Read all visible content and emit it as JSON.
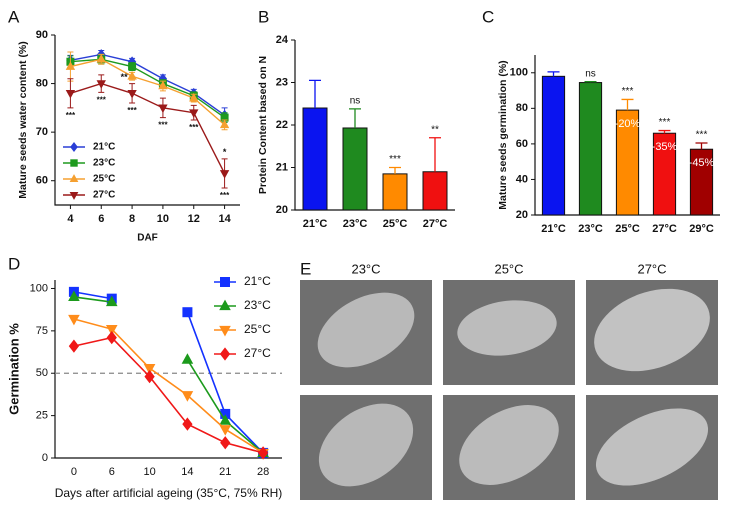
{
  "chart_data": [
    {
      "type": "line",
      "panel_label": "A",
      "ylabel": "Mature seeds water content (%)",
      "xlabel": "DAF",
      "x": [
        4,
        6,
        8,
        10,
        12,
        14
      ],
      "xlim": [
        3,
        15
      ],
      "xticks": [
        4,
        6,
        8,
        10,
        12,
        14
      ],
      "ylim": [
        55,
        90
      ],
      "yticks": [
        60,
        70,
        80,
        90
      ],
      "legend": "lower-left",
      "series": [
        {
          "name": "21°C",
          "color": "#2a3fd6",
          "marker": "diamond",
          "values": [
            84.8,
            86,
            84.5,
            81,
            78,
            73.5
          ],
          "errors": [
            1,
            0.8,
            0.7,
            0.8,
            0.8,
            1.5
          ]
        },
        {
          "name": "23°C",
          "color": "#1f9a1f",
          "marker": "square",
          "values": [
            84.5,
            85,
            83.5,
            80,
            77.5,
            73
          ],
          "errors": [
            1.2,
            1,
            0.8,
            0.8,
            0.8,
            1
          ]
        },
        {
          "name": "25°C",
          "color": "#f5a030",
          "marker": "triangle",
          "values": [
            83.5,
            85,
            81.5,
            79.5,
            77,
            71.5
          ],
          "errors": [
            3,
            1,
            0.8,
            1,
            0.8,
            1
          ]
        },
        {
          "name": "27°C",
          "color": "#9b1a1a",
          "marker": "triangle-down",
          "values": [
            78,
            80,
            78,
            75,
            74,
            61.5
          ],
          "errors": [
            3,
            1.8,
            2,
            2,
            1.5,
            3
          ],
          "significance_above": [
            null,
            null,
            "**",
            null,
            null,
            "*"
          ],
          "significance_below": [
            "***",
            "***",
            "***",
            "***",
            "***",
            "***"
          ]
        }
      ]
    },
    {
      "type": "bar",
      "panel_label": "B",
      "ylabel": "Protein Content based on N",
      "categories": [
        "21°C",
        "23°C",
        "25°C",
        "27°C"
      ],
      "values": [
        22.4,
        21.93,
        20.85,
        20.9
      ],
      "errors": [
        0.65,
        0.45,
        0.15,
        0.8
      ],
      "colors": [
        "#0a14f0",
        "#1f8a1f",
        "#ff8a00",
        "#f01010"
      ],
      "significance": [
        null,
        "ns",
        "***",
        "**"
      ],
      "ylim": [
        20,
        24
      ],
      "yticks": [
        20,
        21,
        22,
        23,
        24
      ]
    },
    {
      "type": "bar",
      "panel_label": "C",
      "ylabel": "Mature seeds germination (%)",
      "categories": [
        "21°C",
        "23°C",
        "25°C",
        "27°C",
        "29°C"
      ],
      "values": [
        98,
        94.5,
        79,
        66,
        57
      ],
      "errors": [
        2.5,
        0.5,
        6,
        1.5,
        3.5
      ],
      "colors": [
        "#0a14f0",
        "#1f8a1f",
        "#ff8a00",
        "#f01010",
        "#a00000"
      ],
      "significance": [
        null,
        "ns",
        "***",
        "***",
        "***"
      ],
      "bar_labels": [
        null,
        null,
        "-20%",
        "-35%",
        "-45%"
      ],
      "ylim": [
        20,
        110
      ],
      "yticks": [
        20,
        40,
        60,
        80,
        100
      ]
    },
    {
      "type": "line",
      "panel_label": "D",
      "ylabel": "Germination %",
      "xlabel": "Days after artificial ageing (35°C, 75% RH)",
      "categories": [
        "0",
        "6",
        "10",
        "14",
        "21",
        "28"
      ],
      "ylim": [
        0,
        105
      ],
      "yticks": [
        0,
        25,
        50,
        75,
        100
      ],
      "reference_line": 50,
      "legend": "upper-right",
      "series": [
        {
          "name": "21°C",
          "color": "#1432ff",
          "marker": "square",
          "values": [
            98,
            94,
            null,
            86,
            26,
            3
          ]
        },
        {
          "name": "23°C",
          "color": "#1c9a1c",
          "marker": "triangle",
          "values": [
            95,
            92,
            null,
            58,
            22,
            3
          ]
        },
        {
          "name": "25°C",
          "color": "#ff8c1a",
          "marker": "triangle-down",
          "values": [
            82,
            76,
            53,
            37,
            17,
            3
          ]
        },
        {
          "name": "27°C",
          "color": "#f01818",
          "marker": "diamond",
          "values": [
            66,
            71,
            48,
            20,
            9,
            3
          ]
        }
      ]
    }
  ],
  "micrographs": {
    "panel_label": "E",
    "columns": [
      "23°C",
      "25°C",
      "27°C"
    ]
  }
}
